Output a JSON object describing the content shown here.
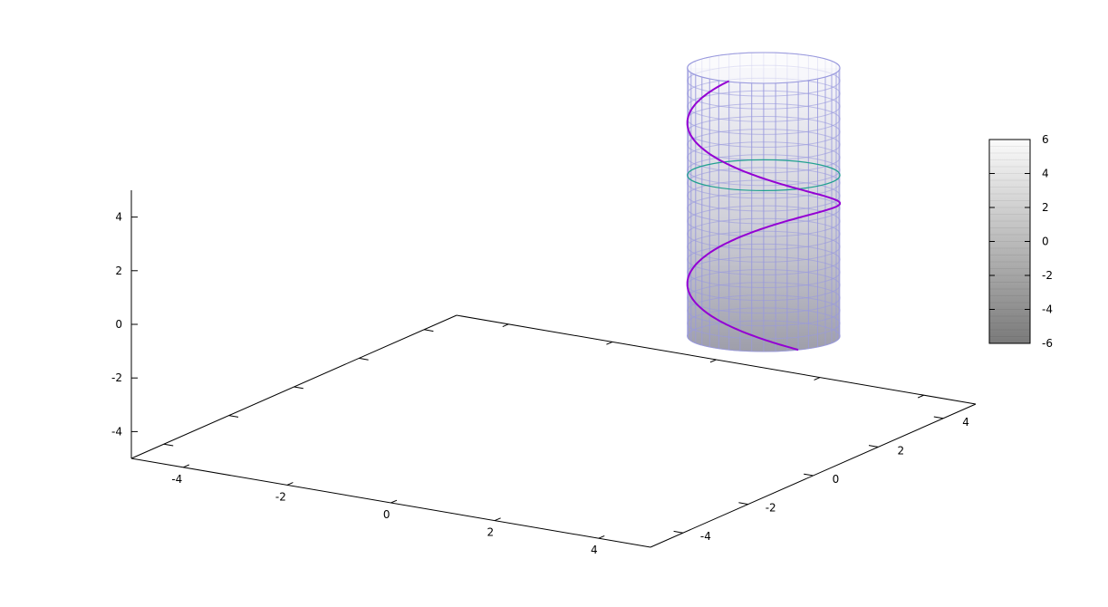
{
  "chart_data": {
    "type": "surface3d",
    "title": "",
    "xlabel": "",
    "ylabel": "",
    "zlabel": "",
    "xlim": [
      -5,
      5
    ],
    "ylim": [
      -5,
      5
    ],
    "zlim": [
      -5,
      5
    ],
    "x_ticks": [
      -4,
      -2,
      0,
      2,
      4
    ],
    "y_ticks": [
      -4,
      -2,
      0,
      2,
      4
    ],
    "z_ticks": [
      -4,
      -2,
      0,
      2,
      4
    ],
    "colorbar": {
      "range": [
        -6,
        6
      ],
      "ticks": [
        -6,
        -4,
        -2,
        0,
        2,
        4,
        6
      ],
      "palette": "grayscale"
    },
    "series": [
      {
        "kind": "cylinder",
        "radius": 1,
        "center": [
          1,
          4
        ],
        "z_range": [
          -4,
          6
        ],
        "color": "#9999dd"
      },
      {
        "kind": "helix",
        "radius": 1,
        "center": [
          1,
          4
        ],
        "z_range": [
          -4,
          5
        ],
        "turns": 1.5,
        "color": "#9400d3"
      },
      {
        "kind": "circle",
        "radius": 1,
        "center": [
          1,
          4
        ],
        "z": 2,
        "color": "#20a090"
      }
    ]
  }
}
